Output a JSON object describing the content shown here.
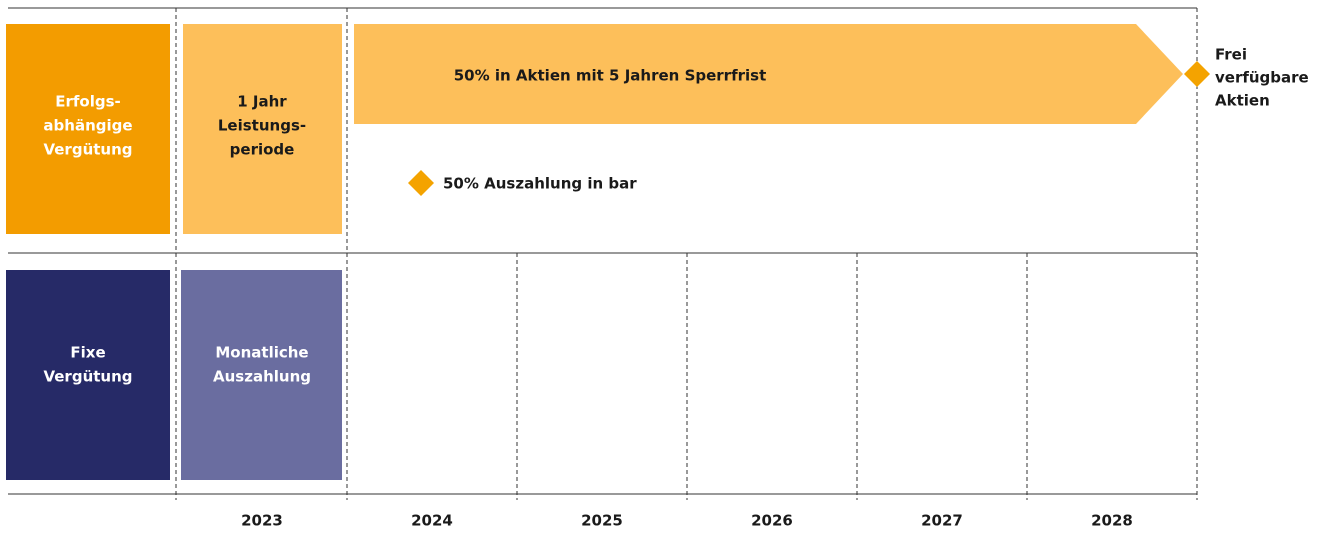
{
  "rows": [
    {
      "label": [
        "Erfolgs-",
        "abhängige",
        "Vergütung"
      ],
      "period": [
        "1 Jahr",
        "Leistungs-",
        "periode"
      ]
    },
    {
      "label": [
        "Fixe",
        "Vergütung"
      ],
      "period": [
        "Monatliche",
        "Auszahlung"
      ]
    }
  ],
  "arrow": {
    "label": "50% in Aktien mit 5 Jahren Sperrfrist"
  },
  "end_marker": {
    "label": [
      "Frei",
      "verfügbare",
      "Aktien"
    ]
  },
  "cash_marker": {
    "label": "50% Auszahlung in bar"
  },
  "years": [
    "2023",
    "2024",
    "2025",
    "2026",
    "2027",
    "2028"
  ]
}
